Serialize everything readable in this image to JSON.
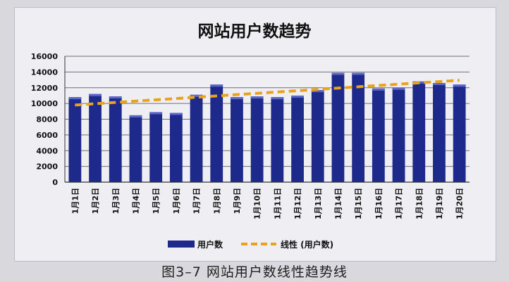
{
  "chart_data": {
    "type": "bar",
    "title": "网站用户数趋势",
    "categories": [
      "1月1日",
      "1月2日",
      "1月3日",
      "1月4日",
      "1月5日",
      "1月6日",
      "1月7日",
      "1月8日",
      "1月9日",
      "1月10日",
      "1月11日",
      "1月12日",
      "1月13日",
      "1月14日",
      "1月15日",
      "1月16日",
      "1月17日",
      "1月18日",
      "1月19日",
      "1月20日"
    ],
    "series": [
      {
        "name": "用户数",
        "values": [
          10800,
          11200,
          10900,
          8500,
          8900,
          8800,
          11100,
          12400,
          10800,
          10900,
          10800,
          11000,
          11700,
          13900,
          13900,
          11900,
          12000,
          12800,
          12600,
          12400
        ],
        "color": "#1d2a8c"
      }
    ],
    "trendline": {
      "name": "线性 (用户数)",
      "start": 9800,
      "end": 12950,
      "color": "#e8a21c"
    },
    "ylim": [
      0,
      16000
    ],
    "yticks": [
      "0",
      "2000",
      "4000",
      "6000",
      "8000",
      "10000",
      "12000",
      "14000",
      "16000"
    ],
    "grid": true,
    "legend_position": "bottom"
  },
  "caption": "图3–7   网站用户数线性趋势线"
}
